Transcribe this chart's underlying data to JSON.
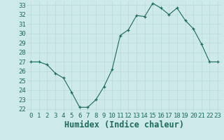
{
  "title": "",
  "xlabel": "Humidex (Indice chaleur)",
  "ylabel": "",
  "x_values": [
    0,
    1,
    2,
    3,
    4,
    5,
    6,
    7,
    8,
    9,
    10,
    11,
    12,
    13,
    14,
    15,
    16,
    17,
    18,
    19,
    20,
    21,
    22,
    23
  ],
  "y_values": [
    27,
    27,
    26.7,
    25.8,
    25.3,
    23.8,
    22.2,
    22.2,
    23.0,
    24.4,
    26.2,
    29.8,
    30.4,
    31.9,
    31.8,
    33.2,
    32.7,
    32.0,
    32.7,
    31.4,
    30.5,
    28.9,
    27.0,
    27.0
  ],
  "xlim": [
    -0.5,
    23.5
  ],
  "ylim": [
    21.7,
    33.4
  ],
  "yticks": [
    22,
    23,
    24,
    25,
    26,
    27,
    28,
    29,
    30,
    31,
    32,
    33
  ],
  "xticks": [
    0,
    1,
    2,
    3,
    4,
    5,
    6,
    7,
    8,
    9,
    10,
    11,
    12,
    13,
    14,
    15,
    16,
    17,
    18,
    19,
    20,
    21,
    22,
    23
  ],
  "line_color": "#1a6b5a",
  "marker_color": "#1a6b5a",
  "bg_color": "#cde9e9",
  "grid_color": "#b8d8d8",
  "tick_label_fontsize": 6.5,
  "xlabel_fontsize": 8.5
}
